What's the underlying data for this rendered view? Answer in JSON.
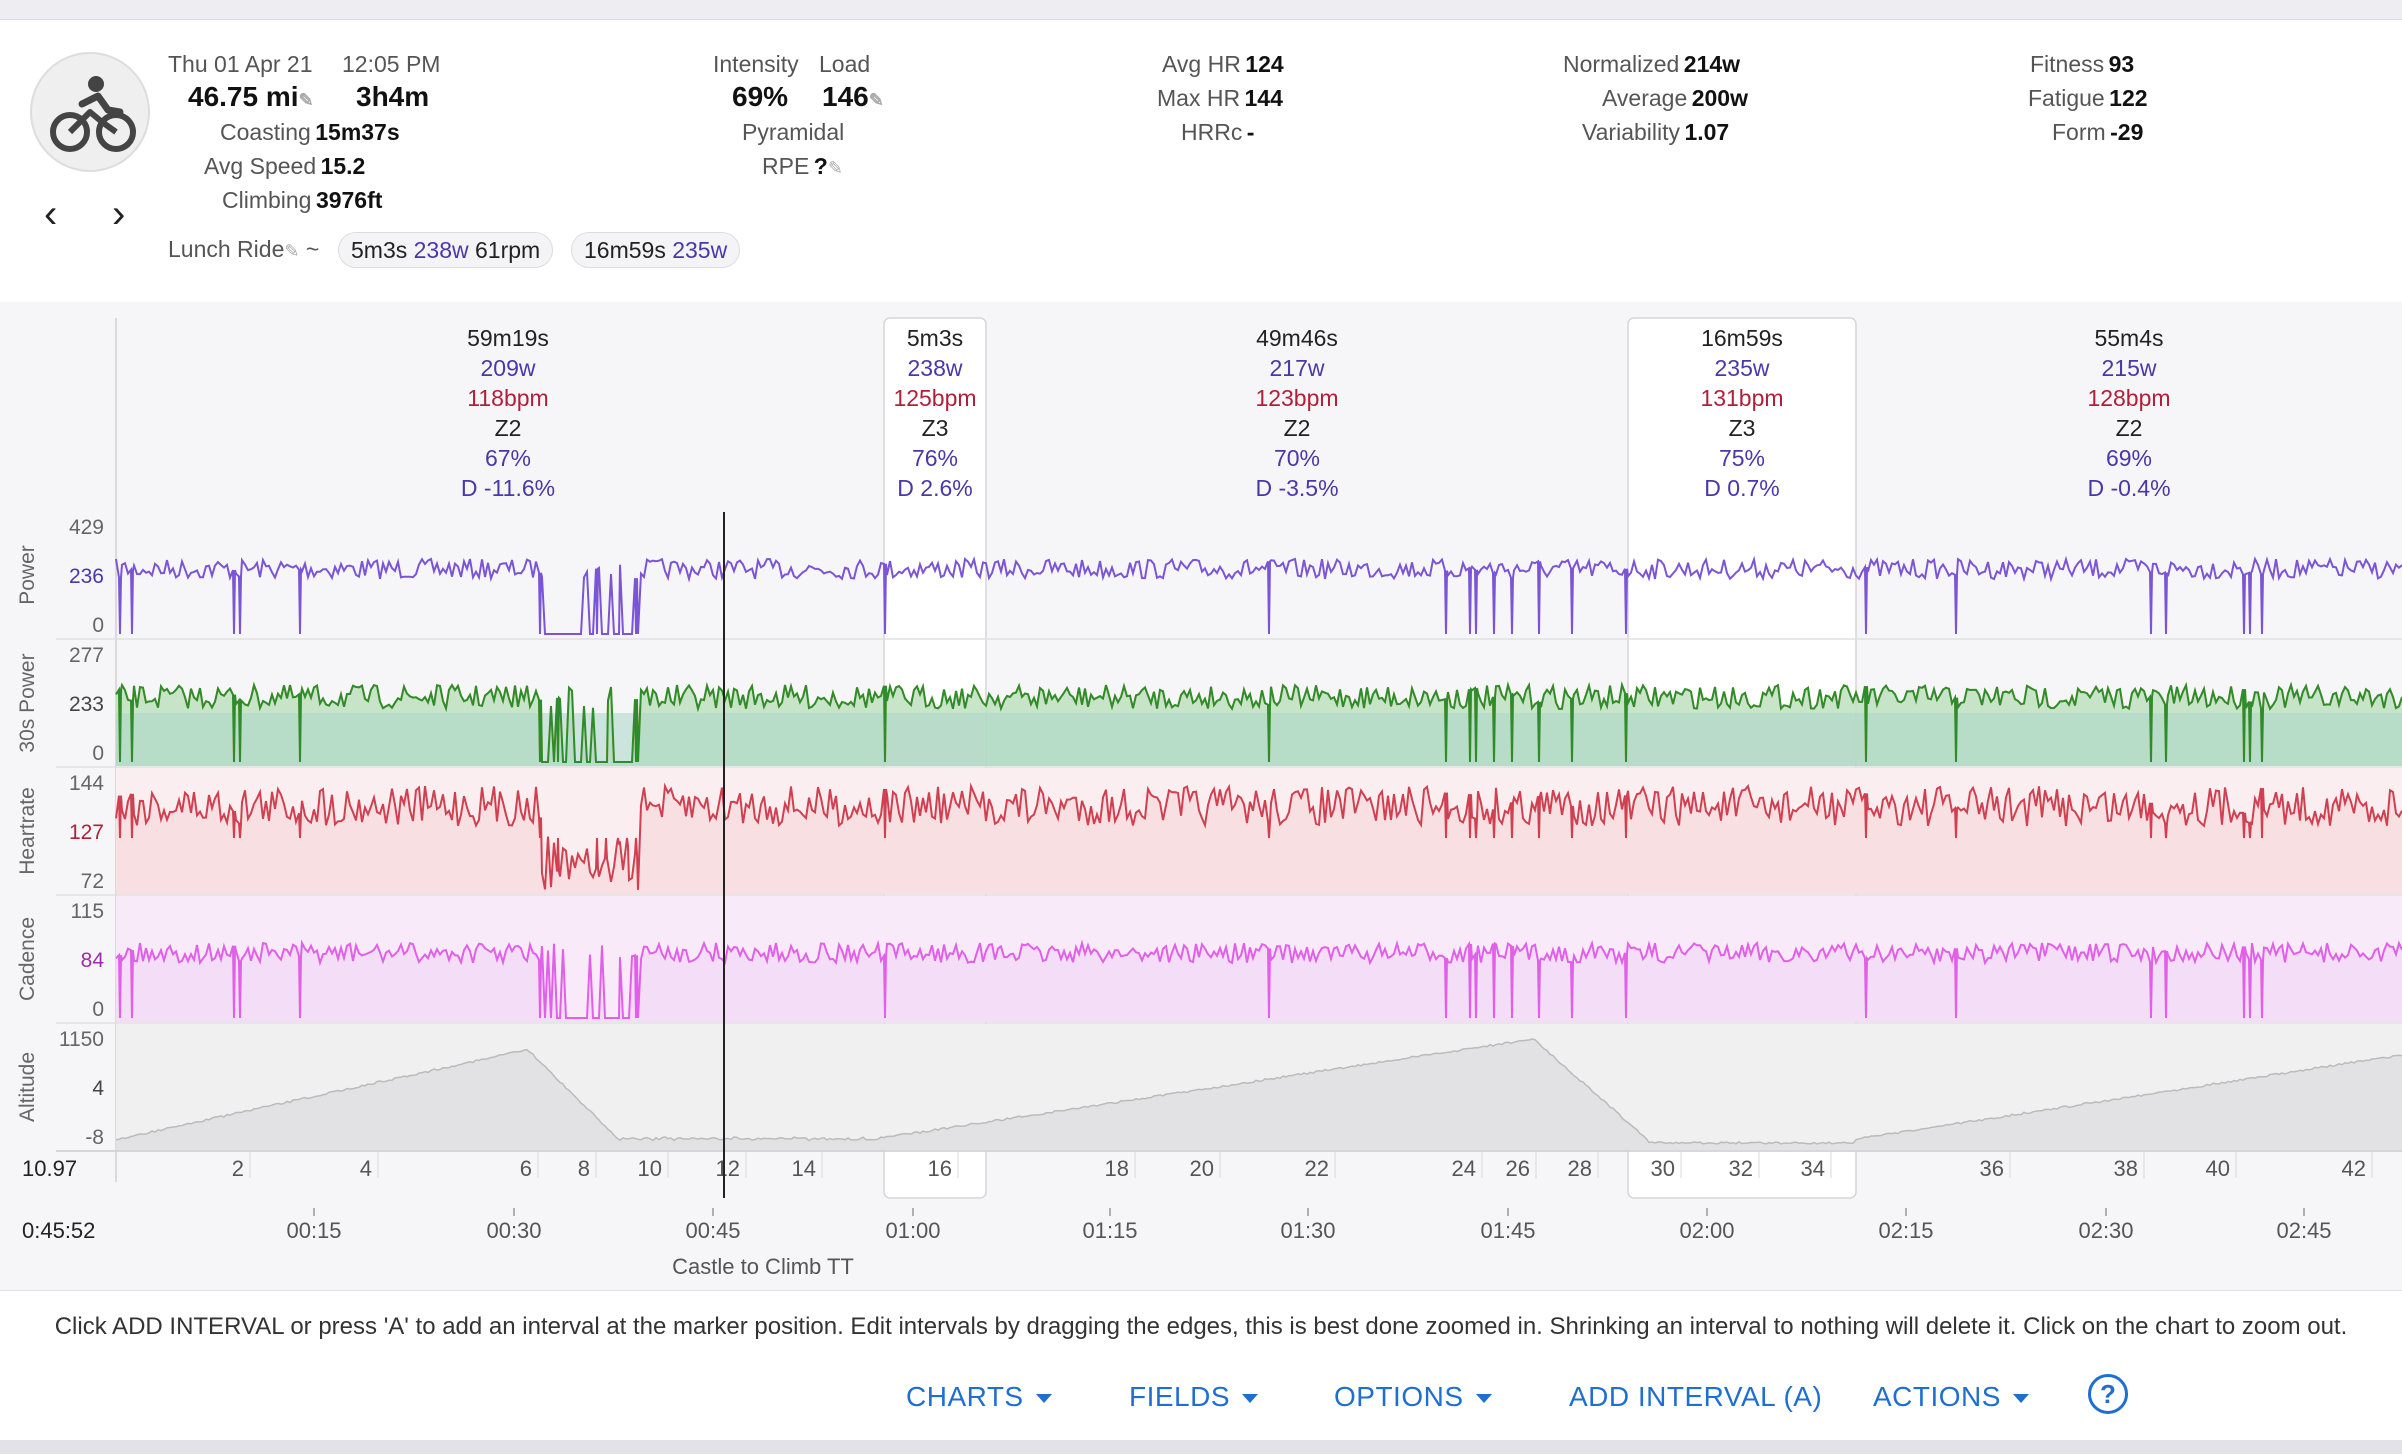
{
  "header": {
    "date": "Thu 01 Apr 21",
    "time": "12:05 PM",
    "distance": "46.75 mi",
    "duration": "3h4m",
    "coasting_label": "Coasting",
    "coasting": "15m37s",
    "avg_speed_label": "Avg Speed",
    "avg_speed": "15.2",
    "climbing_label": "Climbing",
    "climbing": "3976ft",
    "intensity_label": "Intensity",
    "intensity": "69%",
    "load_label": "Load",
    "load": "146",
    "pyramidal": "Pyramidal",
    "rpe_label": "RPE",
    "rpe": "?",
    "avg_hr_label": "Avg HR",
    "avg_hr": "124",
    "max_hr_label": "Max HR",
    "max_hr": "144",
    "hrrc_label": "HRRc",
    "hrrc": "-",
    "normalized_label": "Normalized",
    "normalized": "214w",
    "average_label": "Average",
    "average": "200w",
    "variability_label": "Variability",
    "variability": "1.07",
    "fitness_label": "Fitness",
    "fitness": "93",
    "fatigue_label": "Fatigue",
    "fatigue": "122",
    "form_label": "Form",
    "form": "-29",
    "activity_name": "Lunch Ride",
    "tilde": "~",
    "pill1": {
      "time": "5m3s",
      "watts": "238w",
      "rpm": "61rpm"
    },
    "pill2": {
      "time": "16m59s",
      "watts": "235w"
    },
    "icon": "bicycle-icon",
    "prev_icon": "chevron-left-icon",
    "next_icon": "chevron-right-icon"
  },
  "intervals": [
    {
      "duration": "59m19s",
      "watts": "209w",
      "bpm": "118bpm",
      "zone": "Z2",
      "pct": "67%",
      "decoupling": "D -11.6%",
      "selected": false
    },
    {
      "duration": "5m3s",
      "watts": "238w",
      "bpm": "125bpm",
      "zone": "Z3",
      "pct": "76%",
      "decoupling": "D 2.6%",
      "selected": true
    },
    {
      "duration": "49m46s",
      "watts": "217w",
      "bpm": "123bpm",
      "zone": "Z2",
      "pct": "70%",
      "decoupling": "D -3.5%",
      "selected": false
    },
    {
      "duration": "16m59s",
      "watts": "235w",
      "bpm": "131bpm",
      "zone": "Z3",
      "pct": "75%",
      "decoupling": "D 0.7%",
      "selected": true
    },
    {
      "duration": "55m4s",
      "watts": "215w",
      "bpm": "128bpm",
      "zone": "Z2",
      "pct": "69%",
      "decoupling": "D -0.4%",
      "selected": false
    }
  ],
  "tracks": [
    {
      "name": "Power",
      "ticks": [
        "429",
        "236",
        "0"
      ],
      "color": "#7b55d6"
    },
    {
      "name": "30s Power",
      "ticks": [
        "277",
        "233",
        "0"
      ],
      "color": "#2e8b2e"
    },
    {
      "name": "Heartrate",
      "ticks": [
        "144",
        "127",
        "72"
      ],
      "color": "#d04050"
    },
    {
      "name": "Cadence",
      "ticks": [
        "115",
        "84",
        "0"
      ],
      "color": "#e060e8"
    },
    {
      "name": "Altitude",
      "ticks": [
        "1150",
        "4",
        "-8"
      ],
      "color": "#bbbbbb"
    }
  ],
  "distance_axis": {
    "start": "10.97",
    "labels": [
      "2",
      "4",
      "6",
      "8",
      "10",
      "12",
      "14",
      "16",
      "18",
      "20",
      "22",
      "24",
      "26",
      "28",
      "30",
      "32",
      "34",
      "36",
      "38",
      "40",
      "42"
    ]
  },
  "time_axis": {
    "marker": "0:45:52",
    "labels": [
      "00:15",
      "00:30",
      "00:45",
      "01:00",
      "01:15",
      "01:30",
      "01:45",
      "02:00",
      "02:15",
      "02:30",
      "02:45"
    ]
  },
  "segment_label": "Castle to Climb TT",
  "footer": {
    "help": "Click ADD INTERVAL or press 'A' to add an interval at the marker position. Edit intervals by dragging the edges, this is best done zoomed in. Shrinking an interval to nothing will delete it. Click on the chart to zoom out.",
    "charts": "CHARTS",
    "fields": "FIELDS",
    "options": "OPTIONS",
    "add_interval": "ADD INTERVAL (A)",
    "actions": "ACTIONS",
    "help_icon": "?"
  }
}
